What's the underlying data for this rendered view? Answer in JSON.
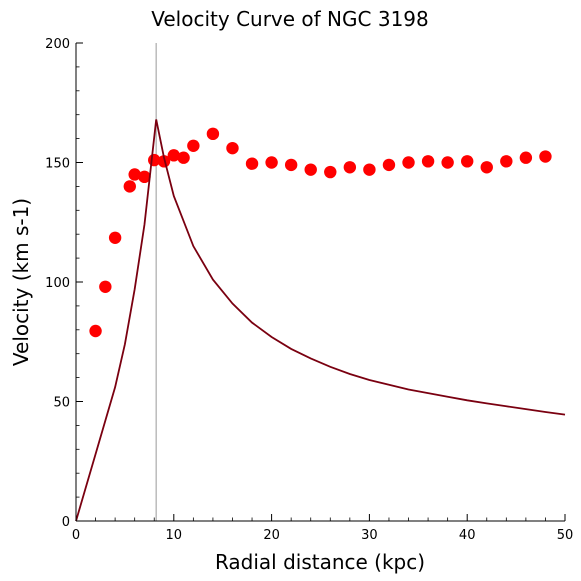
{
  "chart_data": {
    "type": "scatter",
    "title": "Velocity Curve of NGC 3198",
    "xlabel": "Radial distance (kpc)",
    "ylabel": "Velocity (km s-1)",
    "xlim": [
      0,
      50
    ],
    "ylim": [
      0,
      200
    ],
    "x_ticks": [
      0,
      10,
      20,
      30,
      40,
      50
    ],
    "y_ticks": [
      0,
      50,
      100,
      150,
      200
    ],
    "grid": false,
    "legend": "none",
    "vertical_line": {
      "x": 8.2,
      "color": "#bbbbbb"
    },
    "series": [
      {
        "kind": "scatter",
        "color": "#ff0000",
        "points": [
          [
            2.0,
            79.5
          ],
          [
            3.0,
            98
          ],
          [
            4.0,
            118.5
          ],
          [
            5.5,
            140
          ],
          [
            6.0,
            145
          ],
          [
            7.0,
            144
          ],
          [
            8.0,
            151
          ],
          [
            9.0,
            150.5
          ],
          [
            10.0,
            153
          ],
          [
            11.0,
            152
          ],
          [
            12.0,
            157
          ],
          [
            14.0,
            162
          ],
          [
            16.0,
            156
          ],
          [
            18.0,
            149.5
          ],
          [
            20.0,
            150
          ],
          [
            22.0,
            149
          ],
          [
            24.0,
            147
          ],
          [
            26.0,
            146
          ],
          [
            28.0,
            148
          ],
          [
            30.0,
            147
          ],
          [
            32.0,
            149
          ],
          [
            34.0,
            150
          ],
          [
            36.0,
            150.5
          ],
          [
            38.0,
            150
          ],
          [
            40.0,
            150.5
          ],
          [
            42.0,
            148
          ],
          [
            44.0,
            150.5
          ],
          [
            46.0,
            152
          ],
          [
            48.0,
            152.5
          ]
        ]
      },
      {
        "kind": "line",
        "color": "#7a0010",
        "points": [
          [
            0,
            0
          ],
          [
            1,
            14
          ],
          [
            2,
            28
          ],
          [
            3,
            42
          ],
          [
            4,
            56
          ],
          [
            5,
            74
          ],
          [
            6,
            97
          ],
          [
            7,
            124
          ],
          [
            8.2,
            168
          ],
          [
            9,
            152
          ],
          [
            10,
            136
          ],
          [
            12,
            115
          ],
          [
            14,
            101
          ],
          [
            16,
            91
          ],
          [
            18,
            83
          ],
          [
            20,
            77
          ],
          [
            22,
            72
          ],
          [
            24,
            68
          ],
          [
            26,
            64.5
          ],
          [
            28,
            61.5
          ],
          [
            30,
            59
          ],
          [
            32,
            57
          ],
          [
            34,
            55
          ],
          [
            36,
            53.5
          ],
          [
            38,
            52
          ],
          [
            40,
            50.5
          ],
          [
            42,
            49.2
          ],
          [
            44,
            48
          ],
          [
            46,
            46.8
          ],
          [
            48,
            45.6
          ],
          [
            50,
            44.5
          ]
        ]
      }
    ]
  }
}
